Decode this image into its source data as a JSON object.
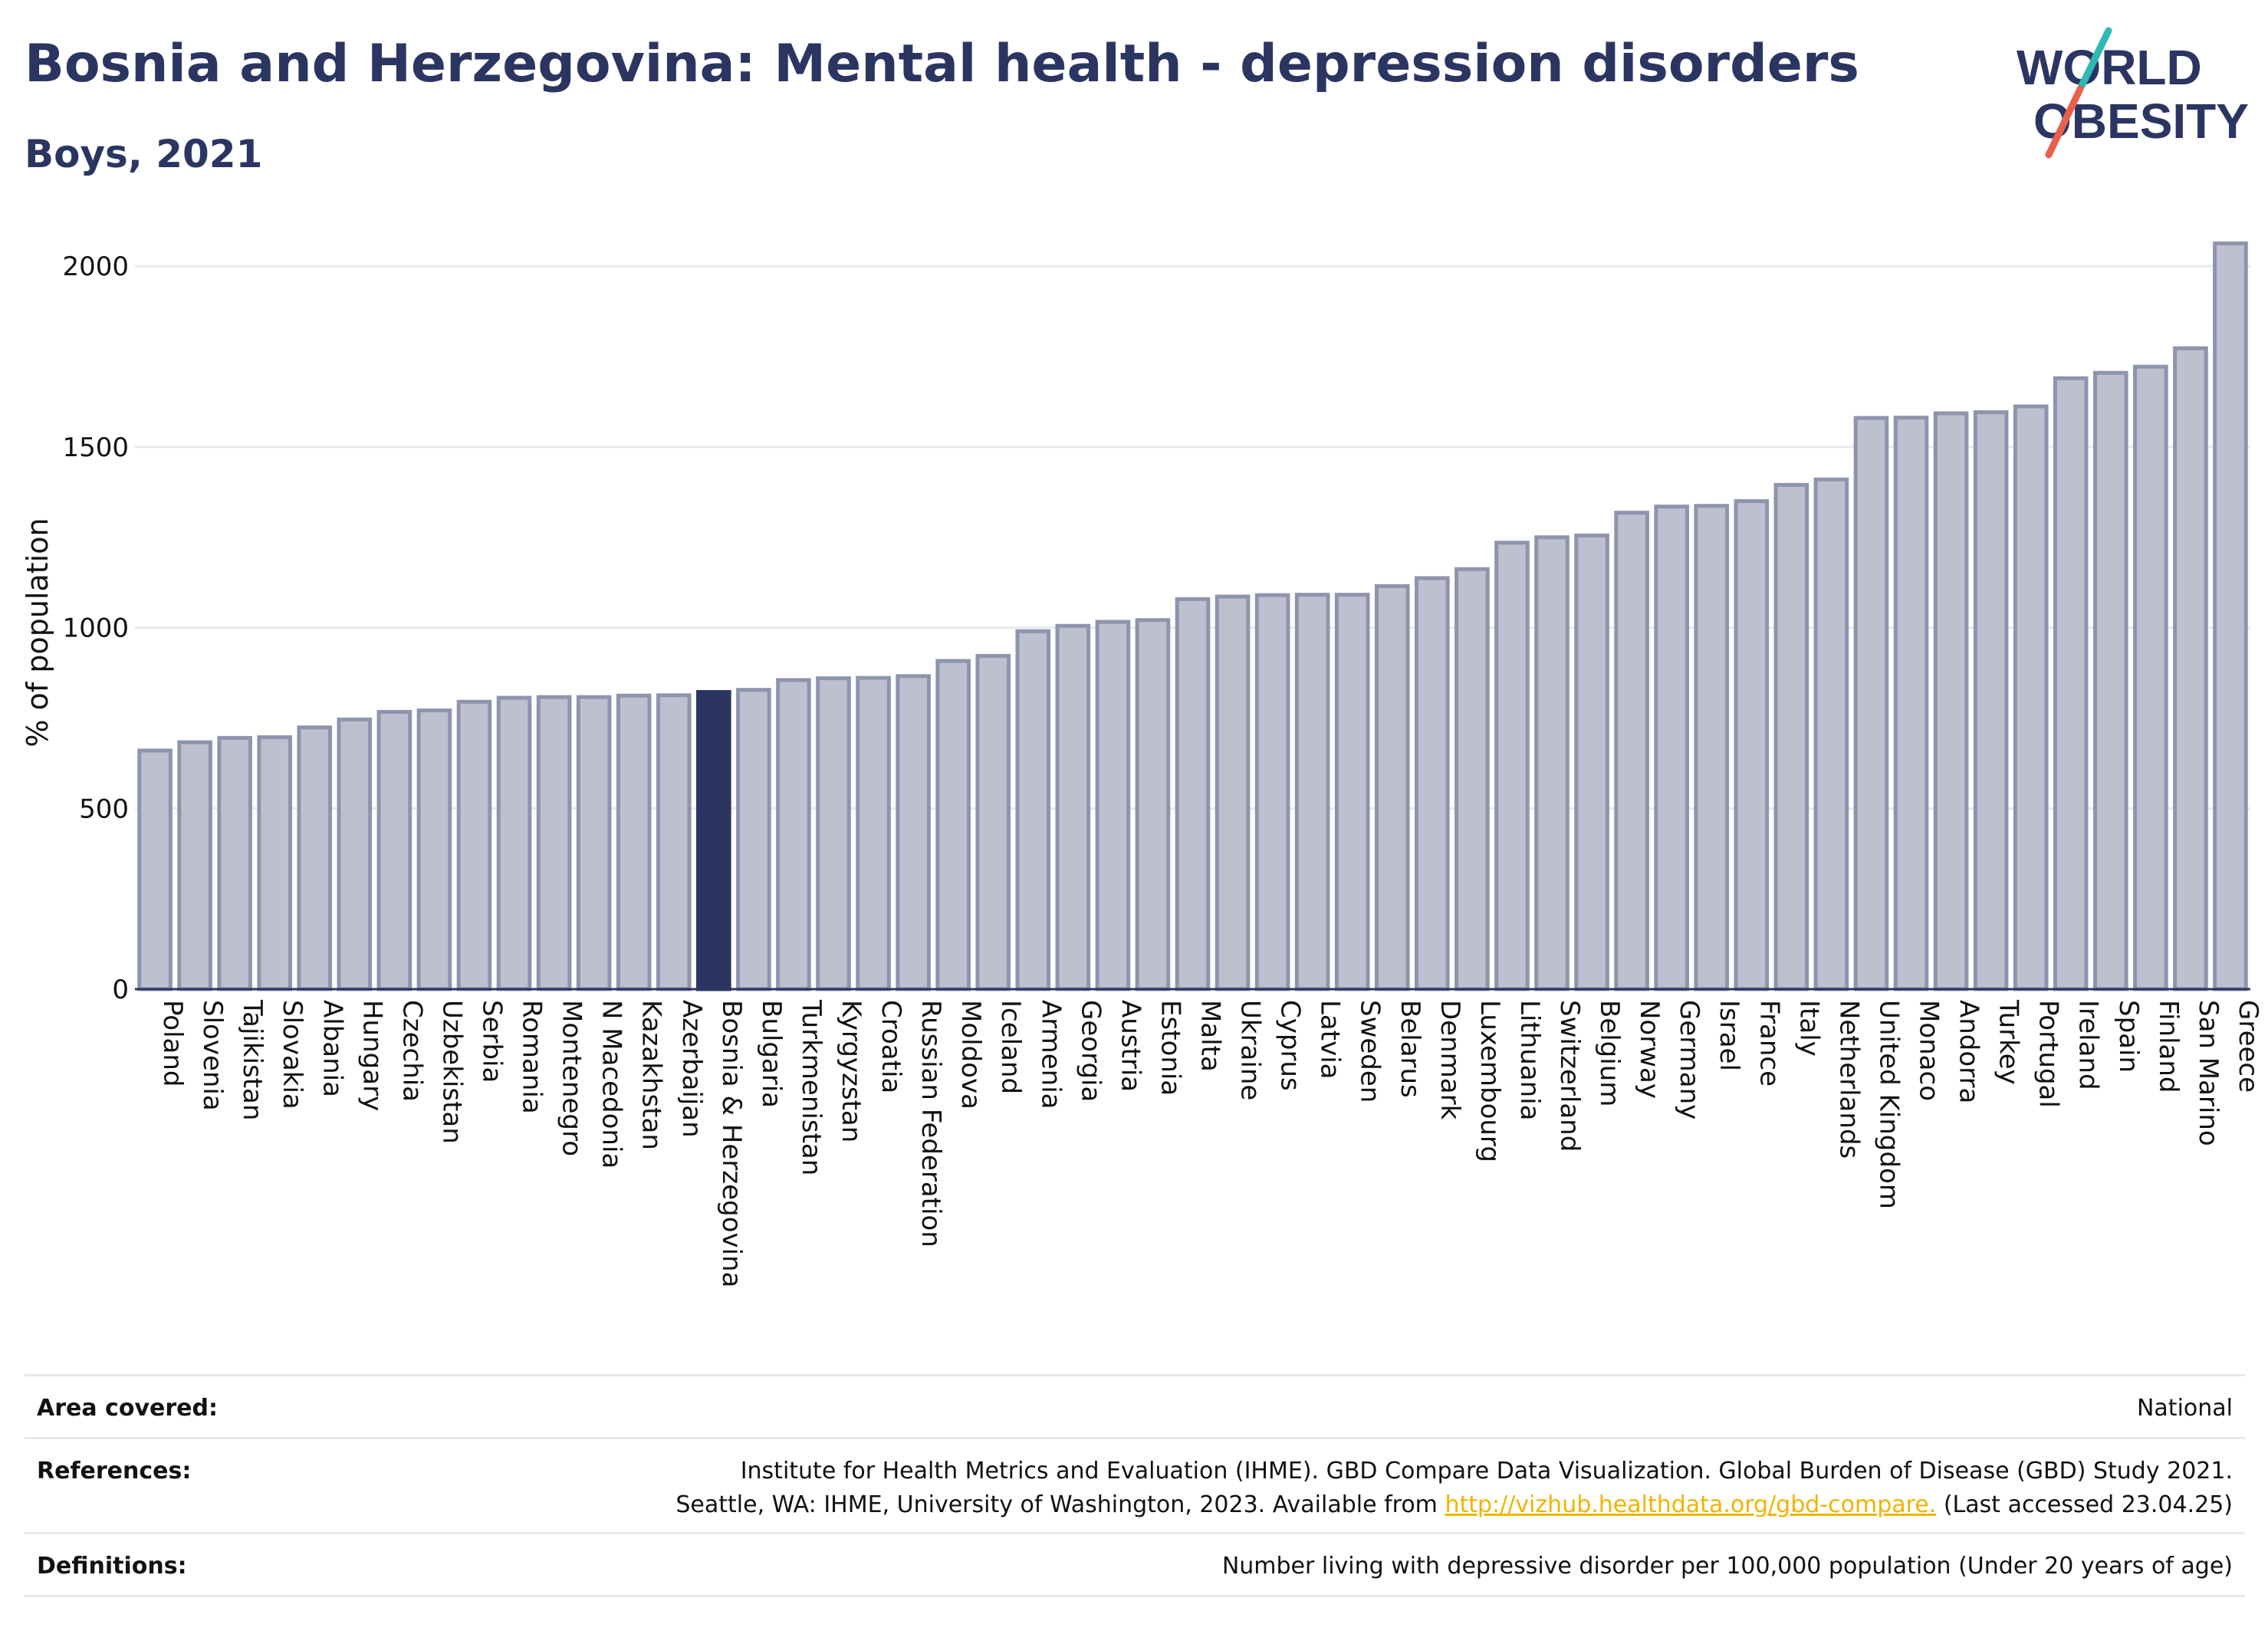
{
  "title": "Bosnia and Herzegovina: Mental health - depression disorders",
  "subtitle": "Boys, 2021",
  "logo": {
    "line1": "WORLD",
    "line2": "OBESITY",
    "accent_teal": "#2fb9b3",
    "accent_red": "#e8604c",
    "text_color": "#2b3561"
  },
  "chart_data": {
    "type": "bar",
    "ylabel": "% of population",
    "ylim": [
      0,
      2100
    ],
    "yticks": [
      0,
      500,
      1000,
      1500,
      2000
    ],
    "grid": true,
    "highlight": "Bosnia & Herzegovina",
    "colors": {
      "bar": "#bcc0cf",
      "bar_edge": "#8f94ad",
      "highlight": "#2b3561"
    },
    "categories": [
      "Poland",
      "Slovenia",
      "Tajikistan",
      "Slovakia",
      "Albania",
      "Hungary",
      "Czechia",
      "Uzbekistan",
      "Serbia",
      "Romania",
      "Montenegro",
      "N Macedonia",
      "Kazakhstan",
      "Azerbaijan",
      "Bosnia & Herzegovina",
      "Bulgaria",
      "Turkmenistan",
      "Kyrgyzstan",
      "Croatia",
      "Russian Federation",
      "Moldova",
      "Iceland",
      "Armenia",
      "Georgia",
      "Austria",
      "Estonia",
      "Malta",
      "Ukraine",
      "Cyprus",
      "Latvia",
      "Sweden",
      "Belarus",
      "Denmark",
      "Luxembourg",
      "Lithuania",
      "Switzerland",
      "Belgium",
      "Norway",
      "Germany",
      "Israel",
      "France",
      "Italy",
      "Netherlands",
      "United Kingdom",
      "Monaco",
      "Andorra",
      "Turkey",
      "Portugal",
      "Ireland",
      "Spain",
      "Finland",
      "San Marino",
      "Greece"
    ],
    "values": [
      660,
      683,
      695,
      697,
      724,
      746,
      767,
      771,
      795,
      806,
      808,
      808,
      812,
      813,
      822,
      828,
      855,
      860,
      861,
      866,
      908,
      922,
      990,
      1005,
      1016,
      1021,
      1079,
      1086,
      1090,
      1091,
      1091,
      1115,
      1137,
      1162,
      1235,
      1250,
      1255,
      1318,
      1335,
      1337,
      1350,
      1395,
      1410,
      1580,
      1581,
      1593,
      1596,
      1612,
      1690,
      1705,
      1722,
      1773,
      2063
    ]
  },
  "info": {
    "area_label": "Area covered:",
    "area_value": "National",
    "references_label": "References:",
    "references_line1": "Institute for Health Metrics and Evaluation (IHME). GBD Compare Data Visualization. Global Burden of Disease (GBD) Study 2021.",
    "references_line2_pre": "Seattle, WA: IHME, University of Washington, 2023. Available from ",
    "references_link": "http://vizhub.healthdata.org/gbd-compare.",
    "references_line2_post": " (Last accessed 23.04.25)",
    "definitions_label": "Definitions:",
    "definitions_value": "Number living with depressive disorder per 100,000 population (Under 20 years of age)"
  }
}
